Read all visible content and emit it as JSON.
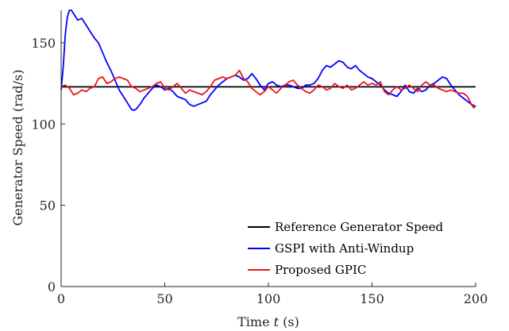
{
  "chart_data": {
    "type": "line",
    "xlabel": "Time t (s)",
    "ylabel": "Generator Speed (rad/s)",
    "xlim": [
      0,
      200
    ],
    "ylim": [
      0,
      170
    ],
    "xticks": [
      0,
      50,
      100,
      150,
      200
    ],
    "yticks": [
      0,
      50,
      100,
      150
    ],
    "grid": false,
    "legend_position": "bottom-right",
    "series": [
      {
        "name": "Reference Generator Speed",
        "color": "#000000",
        "x": [
          0,
          200
        ],
        "y": [
          122.9,
          122.9
        ]
      },
      {
        "name": "GSPI with Anti-Windup",
        "color": "#0000ff",
        "x": [
          0,
          1,
          2,
          3,
          4,
          5,
          6,
          8,
          10,
          12,
          14,
          16,
          18,
          20,
          22,
          24,
          26,
          28,
          30,
          32,
          34,
          35,
          36,
          38,
          40,
          42,
          44,
          46,
          48,
          50,
          52,
          54,
          56,
          58,
          60,
          62,
          64,
          66,
          68,
          70,
          72,
          74,
          76,
          78,
          80,
          82,
          84,
          86,
          88,
          90,
          92,
          94,
          96,
          98,
          100,
          102,
          104,
          106,
          108,
          110,
          112,
          114,
          116,
          118,
          120,
          122,
          124,
          126,
          128,
          130,
          132,
          134,
          136,
          138,
          140,
          142,
          144,
          146,
          148,
          150,
          152,
          154,
          156,
          158,
          160,
          162,
          164,
          166,
          168,
          170,
          172,
          174,
          176,
          178,
          180,
          182,
          184,
          186,
          188,
          190,
          192,
          194,
          196,
          198,
          200
        ],
        "y": [
          121,
          135,
          155,
          166,
          170,
          170,
          168,
          164,
          165,
          161,
          157,
          153,
          150,
          144,
          138,
          133,
          127,
          121,
          117,
          113,
          109,
          108.5,
          109,
          112,
          116,
          119,
          122,
          124,
          123,
          121,
          122,
          120,
          117,
          116,
          115,
          112,
          111,
          112,
          113,
          114,
          118,
          121,
          124,
          126,
          128,
          129,
          130,
          129,
          127,
          128,
          131,
          128,
          124,
          121,
          125,
          126,
          124,
          123,
          124,
          124,
          123,
          122,
          122,
          124,
          124,
          125,
          128,
          133,
          136,
          135,
          137,
          139,
          138,
          135,
          134,
          136,
          133,
          131,
          129,
          128,
          126,
          124,
          121,
          119,
          118,
          117,
          120,
          124,
          120,
          119,
          122,
          120,
          121,
          124,
          125,
          127,
          129,
          128,
          124,
          121,
          118,
          116,
          114,
          112,
          111
        ]
      },
      {
        "name": "Proposed GPIC",
        "color": "#e8161b",
        "x": [
          0,
          2,
          4,
          6,
          8,
          10,
          12,
          14,
          16,
          18,
          20,
          22,
          24,
          26,
          28,
          30,
          32,
          34,
          36,
          38,
          40,
          42,
          44,
          46,
          48,
          50,
          52,
          54,
          56,
          58,
          60,
          62,
          64,
          66,
          68,
          70,
          72,
          74,
          76,
          78,
          80,
          82,
          84,
          86,
          88,
          90,
          92,
          94,
          96,
          98,
          100,
          102,
          104,
          106,
          108,
          110,
          112,
          114,
          116,
          118,
          120,
          122,
          124,
          126,
          128,
          130,
          132,
          134,
          136,
          138,
          140,
          142,
          144,
          146,
          148,
          150,
          152,
          154,
          156,
          158,
          160,
          162,
          164,
          166,
          168,
          170,
          172,
          174,
          176,
          178,
          180,
          182,
          184,
          186,
          188,
          190,
          192,
          194,
          196,
          198,
          199,
          200
        ],
        "y": [
          123,
          124,
          122,
          118,
          119,
          121,
          120,
          122,
          123,
          128,
          129,
          125,
          126,
          128,
          129,
          128,
          127,
          123,
          122,
          120,
          121,
          122,
          123,
          125,
          126,
          122,
          121,
          123,
          125,
          122,
          119,
          121,
          120,
          119,
          118,
          120,
          123,
          127,
          128,
          129,
          128,
          129,
          130,
          133,
          128,
          126,
          122,
          120,
          118,
          120,
          123,
          121,
          119,
          122,
          124,
          126,
          127,
          124,
          122,
          120,
          119,
          121,
          124,
          123,
          121,
          122,
          125,
          123,
          122,
          124,
          121,
          122,
          124,
          126,
          124,
          125,
          124,
          126,
          120,
          118,
          121,
          123,
          121,
          122,
          124,
          122,
          120,
          124,
          126,
          124,
          124,
          122,
          121,
          120,
          121,
          120,
          119,
          119,
          117,
          112,
          110,
          111
        ]
      }
    ]
  }
}
